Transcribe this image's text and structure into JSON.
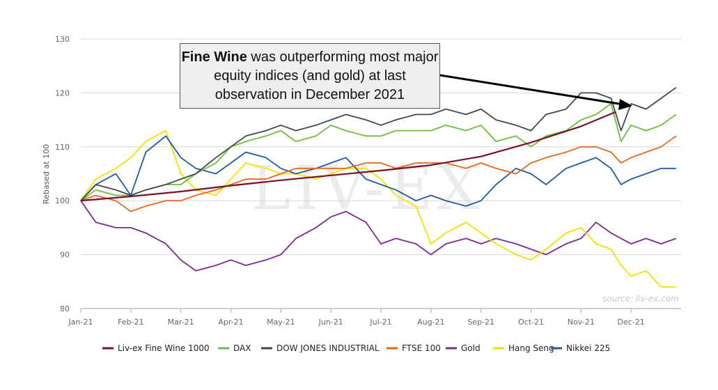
{
  "chart_data": {
    "type": "line",
    "ylabel": "Rebased at 100",
    "ylim": [
      80,
      130
    ],
    "yticks": [
      80,
      90,
      100,
      110,
      120,
      130
    ],
    "x_tick_labels": [
      "Jan-21",
      "Feb-21",
      "Mar-21",
      "Apr-21",
      "May-21",
      "Jun-21",
      "Jul-21",
      "Aug-21",
      "Sep-21",
      "Oct-21",
      "Nov-21",
      "Dec-21"
    ],
    "source": "source: liv-ex.com",
    "watermark": "LIV-EX",
    "annotation": {
      "bold": "Fine Wine",
      "text": " was outperforming most major equity indices (and gold) at last observation in December 2021"
    },
    "legend_position": "bottom",
    "series": [
      {
        "name": "Liv-ex Fine Wine 1000",
        "color": "#7a1028",
        "x": [
          0,
          1,
          2,
          3,
          4,
          5,
          6,
          7,
          8,
          9,
          10,
          10.7
        ],
        "values": [
          100,
          100.8,
          101.7,
          102.8,
          103.8,
          104.7,
          105.6,
          106.6,
          108.2,
          110.8,
          113.8,
          116.5
        ]
      },
      {
        "name": "DAX",
        "color": "#6abf3a",
        "x": [
          0,
          0.3,
          0.7,
          1,
          1.3,
          1.7,
          2,
          2.3,
          2.7,
          3,
          3.3,
          3.7,
          4,
          4.3,
          4.7,
          5,
          5.3,
          5.7,
          6,
          6.3,
          6.7,
          7,
          7.3,
          7.7,
          8,
          8.3,
          8.7,
          9,
          9.3,
          9.7,
          10,
          10.3,
          10.6,
          10.8,
          11,
          11.3,
          11.6,
          11.9
        ],
        "values": [
          100,
          102,
          101,
          101,
          102,
          103,
          103,
          105,
          107,
          110,
          111,
          112,
          113,
          111,
          112,
          114,
          113,
          112,
          112,
          113,
          113,
          113,
          114,
          113,
          114,
          111,
          112,
          110,
          112,
          113,
          115,
          116,
          118,
          111,
          114,
          113,
          114,
          116
        ]
      },
      {
        "name": "DOW JONES INDUSTRIAL",
        "color": "#404850",
        "x": [
          0,
          0.3,
          0.7,
          1,
          1.3,
          1.7,
          2,
          2.3,
          2.7,
          3,
          3.3,
          3.7,
          4,
          4.3,
          4.7,
          5,
          5.3,
          5.7,
          6,
          6.3,
          6.7,
          7,
          7.3,
          7.7,
          8,
          8.3,
          8.7,
          9,
          9.3,
          9.7,
          10,
          10.3,
          10.6,
          10.8,
          11,
          11.3,
          11.6,
          11.9
        ],
        "values": [
          100,
          103,
          102,
          101,
          102,
          103,
          104,
          105,
          108,
          110,
          112,
          113,
          114,
          113,
          114,
          115,
          116,
          115,
          114,
          115,
          116,
          116,
          117,
          116,
          117,
          115,
          114,
          113,
          116,
          117,
          120,
          120,
          119,
          113,
          118,
          117,
          119,
          121
        ]
      },
      {
        "name": "FTSE 100",
        "color": "#e8681a",
        "x": [
          0,
          0.3,
          0.7,
          1,
          1.3,
          1.7,
          2,
          2.3,
          2.7,
          3,
          3.3,
          3.7,
          4,
          4.3,
          4.7,
          5,
          5.3,
          5.7,
          6,
          6.3,
          6.7,
          7,
          7.3,
          7.7,
          8,
          8.3,
          8.7,
          9,
          9.3,
          9.7,
          10,
          10.3,
          10.6,
          10.8,
          11,
          11.3,
          11.6,
          11.9
        ],
        "values": [
          100,
          101,
          100,
          98,
          99,
          100,
          100,
          101,
          102,
          103,
          104,
          104,
          105,
          106,
          106,
          106,
          106,
          107,
          107,
          106,
          107,
          107,
          107,
          106,
          107,
          106,
          105,
          107,
          108,
          109,
          110,
          110,
          109,
          107,
          108,
          109,
          110,
          112
        ]
      },
      {
        "name": "Gold",
        "color": "#7e2b91",
        "x": [
          0,
          0.3,
          0.7,
          1,
          1.3,
          1.7,
          2,
          2.3,
          2.7,
          3,
          3.3,
          3.7,
          4,
          4.3,
          4.7,
          5,
          5.3,
          5.7,
          6,
          6.3,
          6.7,
          7,
          7.3,
          7.7,
          8,
          8.3,
          8.7,
          9,
          9.3,
          9.7,
          10,
          10.3,
          10.6,
          10.8,
          11,
          11.3,
          11.6,
          11.9
        ],
        "values": [
          100,
          96,
          95,
          95,
          94,
          92,
          89,
          87,
          88,
          89,
          88,
          89,
          90,
          93,
          95,
          97,
          98,
          96,
          92,
          93,
          92,
          90,
          92,
          93,
          92,
          93,
          92,
          91,
          90,
          92,
          93,
          96,
          94,
          93,
          92,
          93,
          92,
          93
        ]
      },
      {
        "name": "Hang Seng",
        "color": "#f5e100",
        "x": [
          0,
          0.3,
          0.7,
          1,
          1.3,
          1.7,
          2,
          2.3,
          2.7,
          3,
          3.3,
          3.7,
          4,
          4.3,
          4.7,
          5,
          5.3,
          5.7,
          6,
          6.3,
          6.7,
          7,
          7.3,
          7.7,
          8,
          8.3,
          8.7,
          9,
          9.3,
          9.7,
          10,
          10.3,
          10.6,
          10.8,
          11,
          11.3,
          11.6,
          11.9
        ],
        "values": [
          100,
          104,
          106,
          108,
          111,
          113,
          105,
          102,
          101,
          104,
          107,
          106,
          105,
          105,
          104,
          105,
          106,
          106,
          104,
          101,
          99,
          92,
          94,
          96,
          94,
          92,
          90,
          89,
          91,
          94,
          95,
          92,
          91,
          88,
          86,
          87,
          84,
          84
        ]
      },
      {
        "name": "Nikkei 225",
        "color": "#1a5aa6",
        "x": [
          0,
          0.3,
          0.7,
          1,
          1.3,
          1.7,
          2,
          2.3,
          2.7,
          3,
          3.3,
          3.7,
          4,
          4.3,
          4.7,
          5,
          5.3,
          5.7,
          6,
          6.3,
          6.7,
          7,
          7.3,
          7.7,
          8,
          8.3,
          8.7,
          9,
          9.3,
          9.7,
          10,
          10.3,
          10.6,
          10.8,
          11,
          11.3,
          11.6,
          11.9
        ],
        "values": [
          100,
          103,
          105,
          101,
          109,
          112,
          108,
          106,
          105,
          107,
          109,
          108,
          106,
          105,
          106,
          107,
          108,
          104,
          103,
          102,
          100,
          101,
          100,
          99,
          100,
          103,
          106,
          105,
          103,
          106,
          107,
          108,
          106,
          103,
          104,
          105,
          106,
          106
        ]
      }
    ]
  }
}
